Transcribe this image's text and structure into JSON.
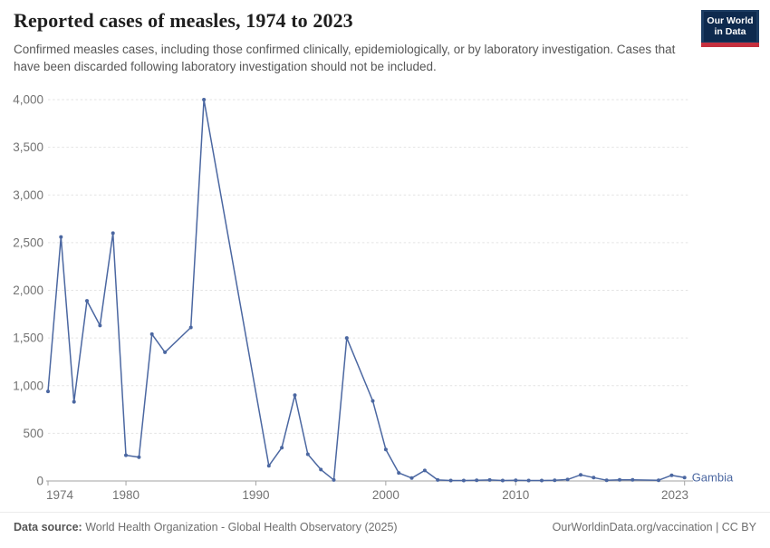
{
  "header": {
    "title": "Reported cases of measles, 1974 to 2023",
    "subtitle": "Confirmed measles cases, including those confirmed clinically, epidemiologically, or by laboratory investigation. Cases that have been discarded following laboratory investigation should not be included.",
    "logo": {
      "line1": "Our World",
      "line2": "in Data"
    }
  },
  "footer": {
    "source_label": "Data source:",
    "source_text": " World Health Organization - Global Health Observatory (2025)",
    "link_text": "OurWorldinData.org/vaccination | CC BY"
  },
  "colors": {
    "line": "#4b67a1",
    "entity_label": "#4b67a1",
    "grid": "#e3e3e3",
    "axis": "#a3a3a3",
    "tick_text": "#737373",
    "logo_navy": "#1d3d63",
    "logo_red": "#c5303e"
  },
  "chart_data": {
    "type": "line",
    "title": "Reported cases of measles, 1974 to 2023",
    "xlabel": "",
    "ylabel": "",
    "ylim": [
      0,
      4000
    ],
    "xlim": [
      1974,
      2023
    ],
    "grid": "dashed horizontal",
    "legend_position": "end-of-line label",
    "y_ticks": [
      0,
      500,
      1000,
      1500,
      2000,
      2500,
      3000,
      3500,
      4000
    ],
    "y_tick_labels": [
      "0",
      "500",
      "1,000",
      "1,500",
      "2,000",
      "2,500",
      "3,000",
      "3,500",
      "4,000"
    ],
    "x_ticks": [
      1974,
      1980,
      1990,
      2000,
      2010,
      2023
    ],
    "missing_years": [
      1984,
      1987,
      1988,
      1989,
      1990,
      1998,
      2020
    ],
    "series": [
      {
        "name": "Gambia",
        "points": [
          [
            1974,
            940
          ],
          [
            1975,
            2560
          ],
          [
            1976,
            830
          ],
          [
            1977,
            1890
          ],
          [
            1978,
            1630
          ],
          [
            1979,
            2600
          ],
          [
            1980,
            270
          ],
          [
            1981,
            250
          ],
          [
            1982,
            1540
          ],
          [
            1983,
            1350
          ],
          [
            1985,
            1610
          ],
          [
            1986,
            4000
          ],
          [
            1991,
            160
          ],
          [
            1992,
            350
          ],
          [
            1993,
            900
          ],
          [
            1994,
            280
          ],
          [
            1995,
            120
          ],
          [
            1996,
            10
          ],
          [
            1997,
            1500
          ],
          [
            1999,
            840
          ],
          [
            2000,
            330
          ],
          [
            2001,
            85
          ],
          [
            2002,
            30
          ],
          [
            2003,
            110
          ],
          [
            2004,
            10
          ],
          [
            2005,
            5
          ],
          [
            2006,
            5
          ],
          [
            2007,
            8
          ],
          [
            2008,
            10
          ],
          [
            2009,
            5
          ],
          [
            2010,
            8
          ],
          [
            2011,
            5
          ],
          [
            2012,
            5
          ],
          [
            2013,
            8
          ],
          [
            2014,
            15
          ],
          [
            2015,
            65
          ],
          [
            2016,
            35
          ],
          [
            2017,
            8
          ],
          [
            2018,
            12
          ],
          [
            2019,
            12
          ],
          [
            2021,
            8
          ],
          [
            2022,
            60
          ],
          [
            2023,
            35
          ]
        ]
      }
    ]
  }
}
